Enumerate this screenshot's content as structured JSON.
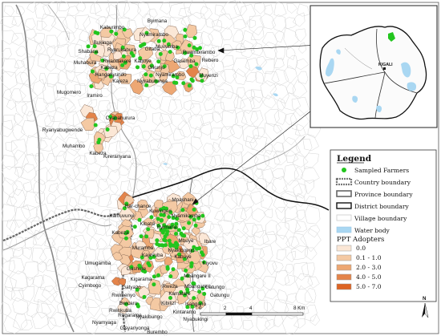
{
  "legend": {
    "title": "Legend",
    "items": [
      {
        "label": "Sampled Farmers",
        "kind": "dot",
        "color": "#22c51e"
      },
      {
        "label": "Country boundary",
        "kind": "country"
      },
      {
        "label": "Province boundary",
        "kind": "province"
      },
      {
        "label": "District boundary",
        "kind": "district"
      },
      {
        "label": "Village boundary",
        "kind": "village"
      },
      {
        "label": "Water body",
        "kind": "water",
        "color": "#a9d7f2"
      }
    ],
    "ppt_title": "PPT Adopters",
    "ppt_classes": [
      {
        "label": "0.0",
        "color": "#fbe7d6"
      },
      {
        "label": "0.1 - 1.0",
        "color": "#f4c9a3"
      },
      {
        "label": "2.0 - 3.0",
        "color": "#eda773"
      },
      {
        "label": "4.0 - 5.0",
        "color": "#e4844a"
      },
      {
        "label": "5.0 - 7.0",
        "color": "#dd6424"
      }
    ]
  },
  "scale": {
    "ticks": [
      "0",
      "2",
      "4",
      "",
      "8 Km"
    ],
    "north": "N"
  },
  "inset": {
    "city_label": "KIGALI"
  },
  "places_north": [
    {
      "name": "Byimana",
      "class": 1
    },
    {
      "name": "Kaburimbo",
      "class": 0
    },
    {
      "name": "Nyamirambo",
      "class": 2
    },
    {
      "name": "Bukinga",
      "class": 1
    },
    {
      "name": "Shabana",
      "class": 0
    },
    {
      "name": "Ryarukabura",
      "class": 1
    },
    {
      "name": "Gitaba",
      "class": 1
    },
    {
      "name": "Muvumba",
      "class": 0
    },
    {
      "name": "Rwambirambo",
      "class": 1
    },
    {
      "name": "Muhabura",
      "class": 0
    },
    {
      "name": "Rwandakore",
      "class": 1
    },
    {
      "name": "Kabuye",
      "class": 1
    },
    {
      "name": "Rebero",
      "class": 2
    },
    {
      "name": "Gasemba",
      "class": 1
    },
    {
      "name": "Kabeza",
      "class": 1
    },
    {
      "name": "Gikunju",
      "class": 1
    },
    {
      "name": "Muyenzi",
      "class": 1
    },
    {
      "name": "Hanganyundo",
      "class": 0
    },
    {
      "name": "Nyamirambo",
      "class": 1
    },
    {
      "name": "Kajeza",
      "class": 1
    },
    {
      "name": "Nyiraburunga",
      "class": 1
    },
    {
      "name": "Mugomero",
      "class": 0
    },
    {
      "name": "Iramiro",
      "class": 0
    },
    {
      "name": "Cyabahurura",
      "class": 1
    },
    {
      "name": "Ryanyabugwende",
      "class": 0
    },
    {
      "name": "Muhambo",
      "class": 0
    },
    {
      "name": "Kabeza",
      "class": 3
    },
    {
      "name": "Kireranyana",
      "class": 1
    }
  ],
  "places_south": [
    {
      "name": "Mpashani",
      "class": 1
    },
    {
      "name": "Rar-chance",
      "class": 0
    },
    {
      "name": "Kuwingeri",
      "class": 1
    },
    {
      "name": "Kamuvunyi",
      "class": 0
    },
    {
      "name": "Nyamikamba",
      "class": 1
    },
    {
      "name": "Kibatsi",
      "class": 1
    },
    {
      "name": "Byimana",
      "class": 2
    },
    {
      "name": "Kabeza",
      "class": 3
    },
    {
      "name": "Mbuye",
      "class": 2
    },
    {
      "name": "Ibare",
      "class": 0
    },
    {
      "name": "Muramba",
      "class": 1
    },
    {
      "name": "Nyakibungo",
      "class": 3
    },
    {
      "name": "Kajevuba",
      "class": 1
    },
    {
      "name": "Kabuye",
      "class": 2
    },
    {
      "name": "Umugamba",
      "class": 1
    },
    {
      "name": "Gashure",
      "class": 1
    },
    {
      "name": "Kiyovu",
      "class": 1
    },
    {
      "name": "Kagarama",
      "class": 0
    },
    {
      "name": "Kigarama",
      "class": 1
    },
    {
      "name": "Mbangare II",
      "class": 1
    },
    {
      "name": "Cyimbogo",
      "class": 1
    },
    {
      "name": "Gatyazo",
      "class": 1
    },
    {
      "name": "Rweza",
      "class": 1
    },
    {
      "name": "Mbangare I",
      "class": 2
    },
    {
      "name": "Gatungo",
      "class": 0
    },
    {
      "name": "Rwimenyo",
      "class": 1
    },
    {
      "name": "Kamatare",
      "class": 1
    },
    {
      "name": "Gatungu",
      "class": 0
    },
    {
      "name": "Bwicaro",
      "class": 1
    },
    {
      "name": "Kibilizi",
      "class": 1
    },
    {
      "name": "Isangano",
      "class": 1
    },
    {
      "name": "Rwinkuba",
      "class": 1
    },
    {
      "name": "Rugarama",
      "class": 1
    },
    {
      "name": "Nyakibungo",
      "class": 1
    },
    {
      "name": "Kintaramo",
      "class": 1
    },
    {
      "name": "Nyabukingi",
      "class": 0
    },
    {
      "name": "Nyamyaga",
      "class": 0
    },
    {
      "name": "Gisyanyonga",
      "class": 1
    },
    {
      "name": "Burembo",
      "class": 0
    }
  ]
}
